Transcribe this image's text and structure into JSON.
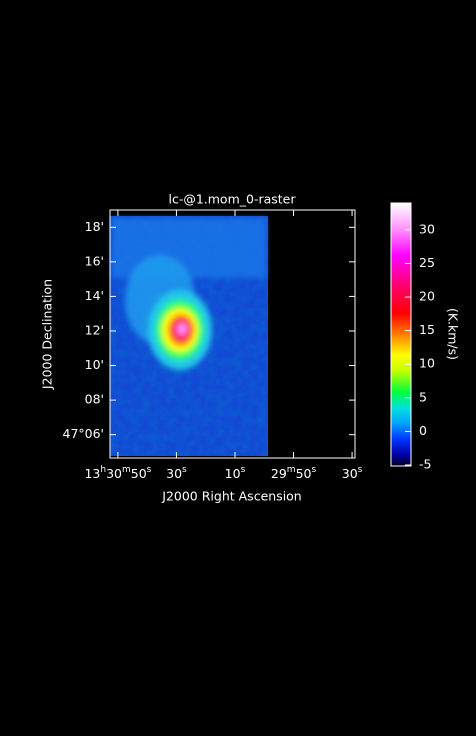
{
  "chart_data": {
    "type": "image",
    "title": "lc-@1.mom_0-raster",
    "x_label": "J2000 Right Ascension",
    "y_label": "J2000 Declination",
    "xlim": [
      112.7,
      29
    ],
    "xticks": [
      {
        "value": 110,
        "label": "13h30m50s"
      },
      {
        "value": 90,
        "label": "30s"
      },
      {
        "value": 70,
        "label": "10s"
      },
      {
        "value": 50,
        "label": "29m50s"
      },
      {
        "value": 30,
        "label": "30s"
      }
    ],
    "ylim": [
      4.65,
      19.0
    ],
    "yticks": [
      {
        "value": 18,
        "label": "18'"
      },
      {
        "value": 16,
        "label": "16'"
      },
      {
        "value": 14,
        "label": "14'"
      },
      {
        "value": 12,
        "label": "12'"
      },
      {
        "value": 10,
        "label": "10'"
      },
      {
        "value": 8,
        "label": "08'"
      },
      {
        "value": 6,
        "label": "47°06'"
      }
    ],
    "colorbar_label": "(K.km/s)",
    "colorbar_lim": [
      -5.15,
      34.0
    ],
    "colorbar_ticks": [
      -5,
      0,
      5,
      10,
      15,
      20,
      25,
      30
    ]
  }
}
